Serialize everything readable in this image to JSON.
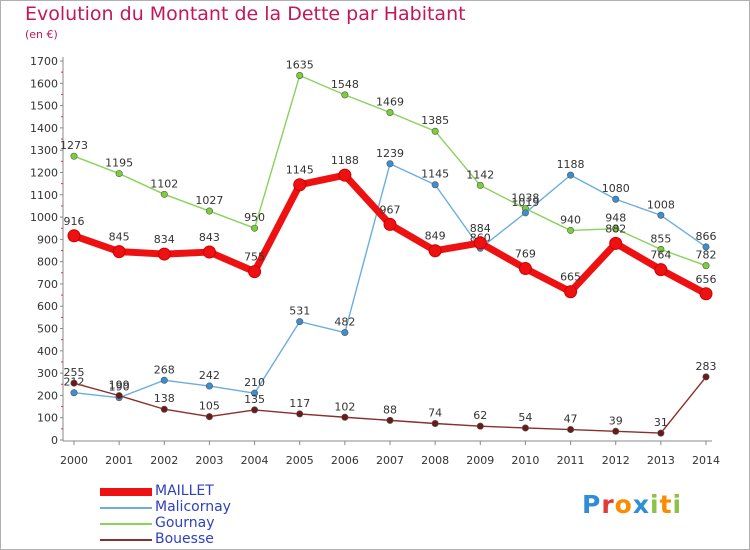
{
  "title": "Evolution du Montant de la Dette par Habitant",
  "subtitle": "(en €)",
  "logo": {
    "letters": [
      {
        "ch": "P",
        "color": "#2f8fd5"
      },
      {
        "ch": "r",
        "color": "#e53935"
      },
      {
        "ch": "o",
        "color": "#fb8c00"
      },
      {
        "ch": "x",
        "color": "#2f8fd5"
      },
      {
        "ch": "i",
        "color": "#8bc34a"
      },
      {
        "ch": "t",
        "color": "#fb8c00"
      },
      {
        "ch": "i",
        "color": "#8bc34a"
      }
    ]
  },
  "chart_data": {
    "type": "line",
    "title": "Evolution du Montant de la Dette par Habitant",
    "subtitle": "(en €)",
    "x": [
      "2000",
      "2001",
      "2002",
      "2003",
      "2004",
      "2005",
      "2006",
      "2007",
      "2008",
      "2009",
      "2010",
      "2011",
      "2012",
      "2013",
      "2014"
    ],
    "ylim": [
      0,
      1700
    ],
    "yticks": [
      0,
      100,
      200,
      300,
      400,
      500,
      600,
      700,
      800,
      900,
      1000,
      1100,
      1200,
      1300,
      1400,
      1500,
      1600,
      1700
    ],
    "grid": false,
    "legend_position": "bottom-left",
    "series": [
      {
        "name": "Gournay",
        "color": "#88d35a",
        "marker": "#7ccf3a",
        "values": [
          1273,
          1195,
          1102,
          1027,
          950,
          1635,
          1548,
          1469,
          1385,
          1142,
          1038,
          940,
          948,
          855,
          782
        ]
      },
      {
        "name": "Malicornay",
        "color": "#6aaee0",
        "marker": "#3b8fd0",
        "values": [
          212,
          190,
          268,
          242,
          210,
          531,
          482,
          1239,
          1145,
          860,
          1019,
          1188,
          1080,
          1008,
          866
        ]
      },
      {
        "name": "Bouesse",
        "color": "#8b2e2e",
        "marker": "#6b1a1a",
        "values": [
          255,
          199,
          138,
          105,
          135,
          117,
          102,
          88,
          74,
          62,
          54,
          47,
          39,
          31,
          283
        ]
      },
      {
        "name": "MAILLET",
        "color": "#ee1111",
        "marker": "#ee1111",
        "values": [
          916,
          845,
          834,
          843,
          755,
          1145,
          1188,
          967,
          849,
          884,
          769,
          665,
          882,
          764,
          656
        ]
      }
    ],
    "legend_order": [
      "MAILLET",
      "Malicornay",
      "Gournay",
      "Bouesse"
    ]
  }
}
